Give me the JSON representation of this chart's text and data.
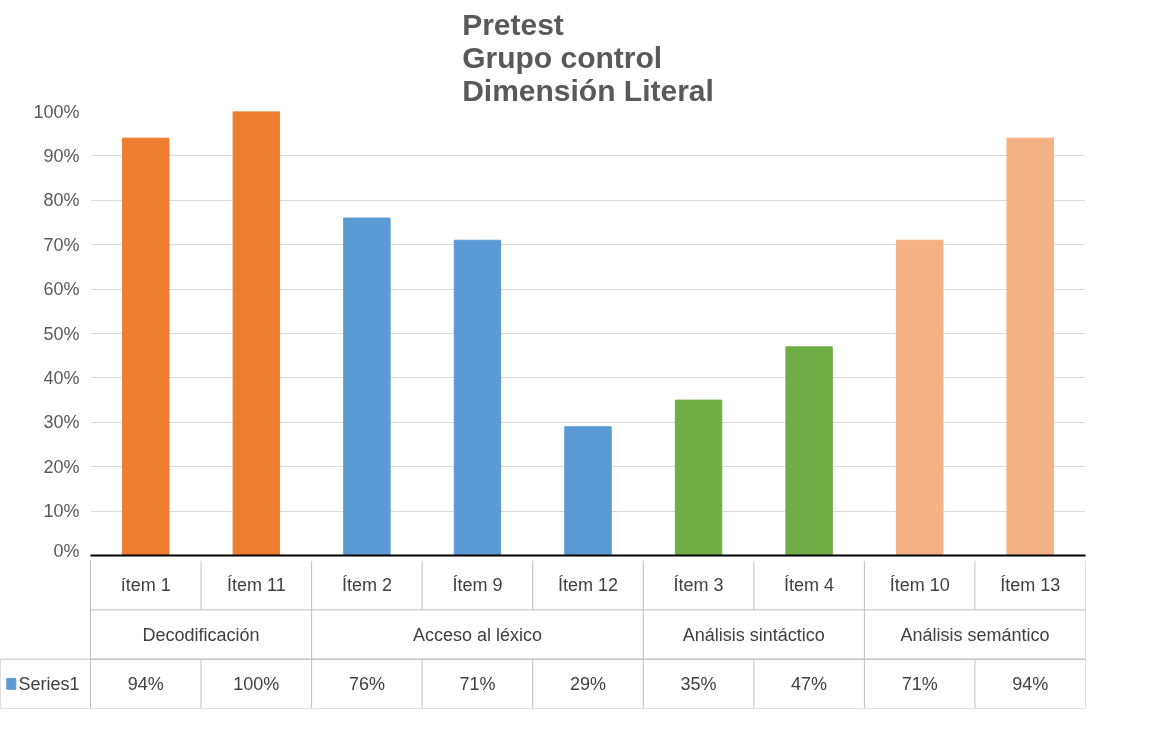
{
  "chart_data": {
    "type": "bar",
    "title": "Pretest\nGrupo control\nDimensión Literal",
    "categories": [
      "ítem 1",
      "Ítem 11",
      "Ítem 2",
      "Ítem 9",
      "Ítem 12",
      "Ítem 3",
      "Ítem 4",
      "Ítem 10",
      "Ítem 13"
    ],
    "colors": [
      "#ed7d31",
      "#ed7d31",
      "#5b9bd5",
      "#5b9bd5",
      "#5b9bd5",
      "#70ad47",
      "#70ad47",
      "#f4b183",
      "#f4b183"
    ],
    "series": [
      {
        "name": "Series1",
        "values": [
          94,
          100,
          76,
          71,
          29,
          35,
          47,
          71,
          94
        ],
        "value_labels": [
          "94%",
          "100%",
          "76%",
          "71%",
          "29%",
          "35%",
          "47%",
          "71%",
          "94%"
        ]
      }
    ],
    "annotations": [
      "Decodificación",
      "Acceso al léxico",
      "Análisis sintáctico",
      "Análisis semántico"
    ],
    "ylim": [
      0,
      100
    ],
    "yticks": [
      {
        "value": 0,
        "label": "0%"
      },
      {
        "value": 10,
        "label": "10%"
      },
      {
        "value": 20,
        "label": "20%"
      },
      {
        "value": 30,
        "label": "30%"
      },
      {
        "value": 40,
        "label": "40%"
      },
      {
        "value": 50,
        "label": "50%"
      },
      {
        "value": 60,
        "label": "60%"
      },
      {
        "value": 70,
        "label": "70%"
      },
      {
        "value": 80,
        "label": "80%"
      },
      {
        "value": 90,
        "label": "90%"
      },
      {
        "value": 100,
        "label": "100%"
      }
    ],
    "grid": "y",
    "legend": "bottom"
  }
}
